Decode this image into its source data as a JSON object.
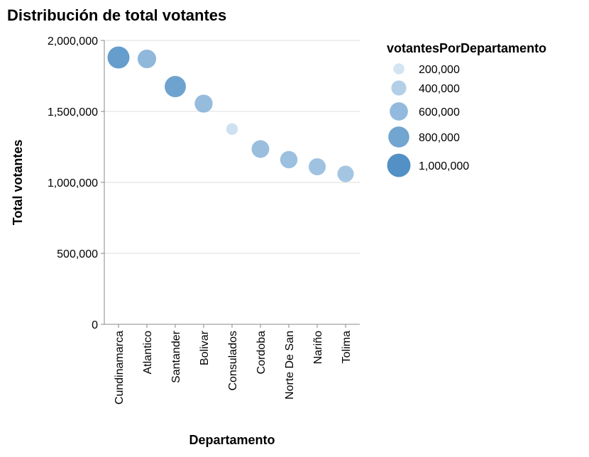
{
  "chart_data": {
    "type": "scatter",
    "title": "Distribución de total votantes",
    "xlabel": "Departamento",
    "ylabel": "Total votantes",
    "ylim": [
      0,
      2000000
    ],
    "yticks": [
      0,
      500000,
      1000000,
      1500000,
      2000000
    ],
    "ytick_labels": [
      "0",
      "500,000",
      "1,000,000",
      "1,500,000",
      "2,000,000"
    ],
    "grid": true,
    "size_field": "votantesPorDepartamento",
    "categories": [
      "Cundinamarca",
      "Atlantico",
      "Santander",
      "Bolivar",
      "Consulados",
      "Cordoba",
      "Norte De San",
      "Nariño",
      "Tolima"
    ],
    "values": [
      1880000,
      1870000,
      1675000,
      1555000,
      1375000,
      1235000,
      1160000,
      1110000,
      1060000
    ],
    "sizes": [
      880000,
      620000,
      820000,
      580000,
      230000,
      560000,
      540000,
      520000,
      480000
    ],
    "legend": {
      "title": "votantesPorDepartamento",
      "position": "right",
      "values": [
        200000,
        400000,
        600000,
        800000,
        1000000
      ],
      "labels": [
        "200,000",
        "400,000",
        "600,000",
        "800,000",
        "1,000,000"
      ]
    },
    "colors": {
      "low": "#dbe9f6",
      "high": "#2171b5",
      "axis": "#888888",
      "grid": "#dddddd",
      "text": "#000000"
    }
  }
}
